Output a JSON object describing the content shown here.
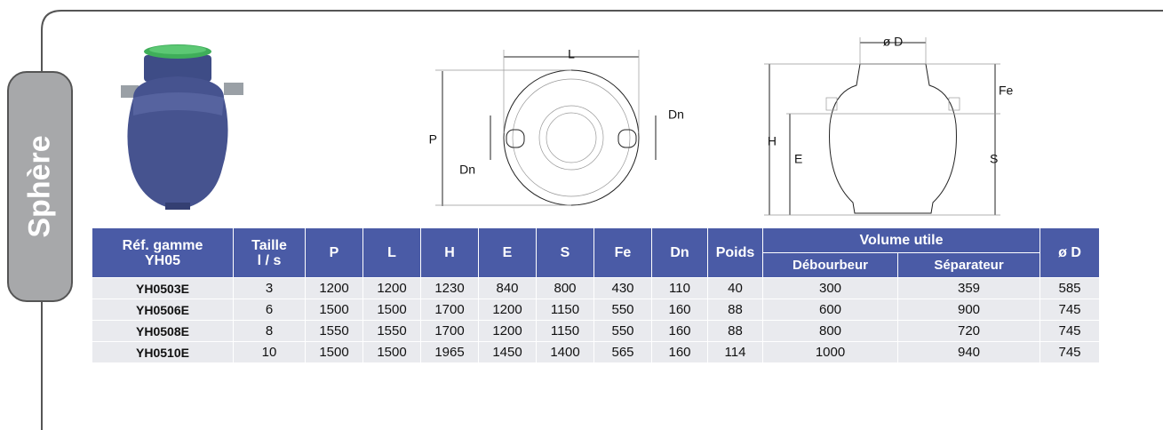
{
  "tab": "Sphère",
  "diagrams": {
    "top_view": {
      "labels": [
        "L",
        "P",
        "Dn",
        "Dn"
      ]
    },
    "side_view": {
      "labels": [
        "ø D",
        "Fe",
        "H",
        "E",
        "S"
      ]
    }
  },
  "table": {
    "header": {
      "ref": [
        "Réf. gamme",
        "YH05"
      ],
      "taille": [
        "Taille",
        "l / s"
      ],
      "dims": [
        "P",
        "L",
        "H",
        "E",
        "S",
        "Fe",
        "Dn",
        "Poids"
      ],
      "volume": "Volume utile",
      "volume_sub": [
        "Débourbeur",
        "Séparateur"
      ],
      "diameter": "ø D"
    },
    "rows": [
      [
        "YH0503E",
        3,
        1200,
        1200,
        1230,
        840,
        800,
        430,
        110,
        40,
        300,
        359,
        585
      ],
      [
        "YH0506E",
        6,
        1500,
        1500,
        1700,
        1200,
        1150,
        550,
        160,
        88,
        600,
        900,
        745
      ],
      [
        "YH0508E",
        8,
        1550,
        1550,
        1700,
        1200,
        1150,
        550,
        160,
        88,
        800,
        720,
        745
      ],
      [
        "YH0510E",
        10,
        1500,
        1500,
        1965,
        1450,
        1400,
        565,
        160,
        114,
        1000,
        940,
        745
      ]
    ]
  }
}
